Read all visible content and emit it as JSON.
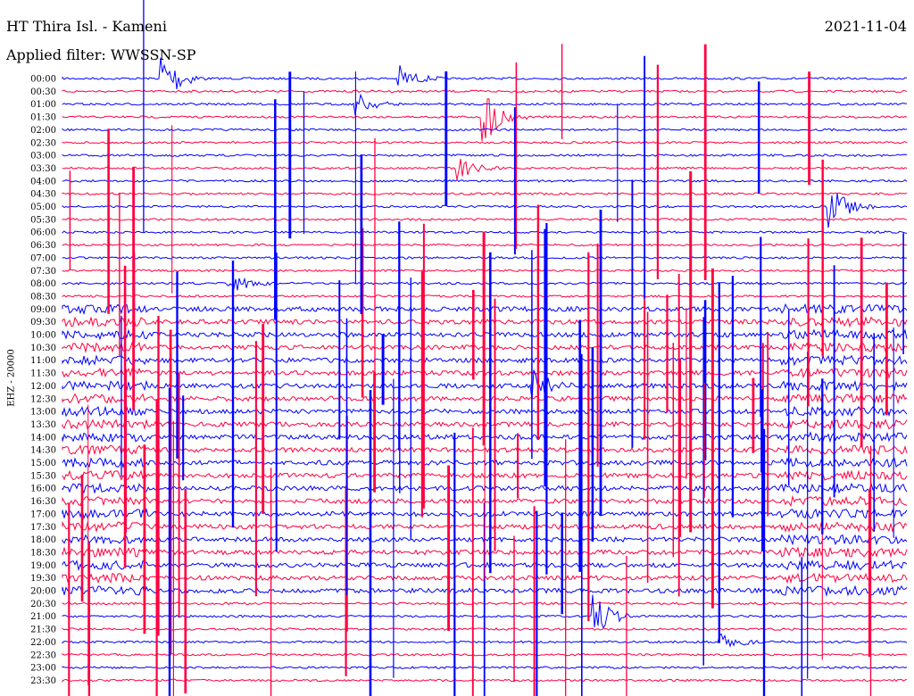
{
  "header": {
    "station": "HT Thira Isl. - Kameni",
    "filter": "Applied filter: WWSSN-SP",
    "date": "2021-11-04"
  },
  "chart_data": {
    "type": "line",
    "title": "HT Thira Isl. - Kameni",
    "subtitle": "Applied filter: WWSSN-SP",
    "ylabel": "EHZ - 20000",
    "date": "2021-11-04",
    "trace_colors": [
      "#0000ff",
      "#ff0040"
    ],
    "rows": [
      "00:00",
      "00:30",
      "01:00",
      "01:30",
      "02:00",
      "02:30",
      "03:00",
      "03:30",
      "04:00",
      "04:30",
      "05:00",
      "05:30",
      "06:00",
      "06:30",
      "07:00",
      "07:30",
      "08:00",
      "08:30",
      "09:00",
      "09:30",
      "10:00",
      "10:30",
      "11:00",
      "11:30",
      "12:00",
      "12:30",
      "13:00",
      "13:30",
      "14:00",
      "14:30",
      "15:00",
      "15:30",
      "16:00",
      "16:30",
      "17:00",
      "17:30",
      "18:00",
      "18:30",
      "19:00",
      "19:30",
      "20:00",
      "20:30",
      "21:00",
      "21:30",
      "22:00",
      "22:30",
      "23:00",
      "23:30"
    ],
    "events": [
      {
        "row": 0,
        "x": 0.12,
        "amp": 2.8
      },
      {
        "row": 0,
        "x": 0.4,
        "amp": 1.2
      },
      {
        "row": 2,
        "x": 0.35,
        "amp": 1.0
      },
      {
        "row": 3,
        "x": 0.5,
        "amp": 2.6
      },
      {
        "row": 7,
        "x": 0.47,
        "amp": 1.0
      },
      {
        "row": 10,
        "x": 0.91,
        "amp": 2.4
      },
      {
        "row": 16,
        "x": 0.2,
        "amp": 1.0
      },
      {
        "row": 24,
        "x": 0.56,
        "amp": 1.3
      },
      {
        "row": 42,
        "x": 0.63,
        "amp": 2.2
      },
      {
        "row": 44,
        "x": 0.78,
        "amp": 1.0
      }
    ]
  }
}
